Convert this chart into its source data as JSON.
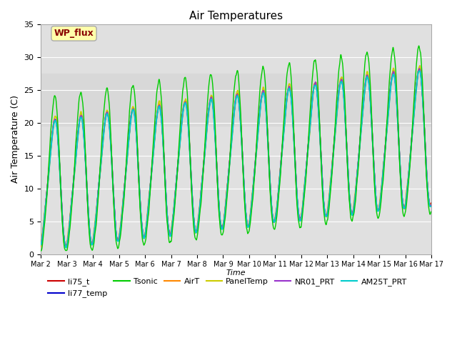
{
  "title": "Air Temperatures",
  "xlabel": "Time",
  "ylabel": "Air Temperature (C)",
  "ylim": [
    0,
    35
  ],
  "series_names": [
    "li75_t",
    "li77_temp",
    "Tsonic",
    "AirT",
    "PanelTemp",
    "NR01_PRT",
    "AM25T_PRT"
  ],
  "series_colors": [
    "#cc0000",
    "#0000cc",
    "#00cc00",
    "#ff8800",
    "#cccc00",
    "#9933cc",
    "#00cccc"
  ],
  "shade_band": [
    19.5,
    27.5
  ],
  "shade_color": "#d8d8d8",
  "wp_flux_label": "WP_flux",
  "wp_flux_color": "#880000",
  "wp_flux_bg": "#ffffaa",
  "xtick_labels": [
    "Mar 2",
    "Mar 3",
    "Mar 4",
    "Mar 5",
    "Mar 6",
    "Mar 7",
    "Mar 8",
    "Mar 9",
    "Mar 10",
    "Mar 11",
    "Mar 12",
    "Mar 13",
    "Mar 14",
    "Mar 15",
    "Mar 16",
    "Mar 17"
  ],
  "background_color": "#e0e0e0",
  "grid_color": "#ffffff",
  "fig_bg": "#ffffff"
}
